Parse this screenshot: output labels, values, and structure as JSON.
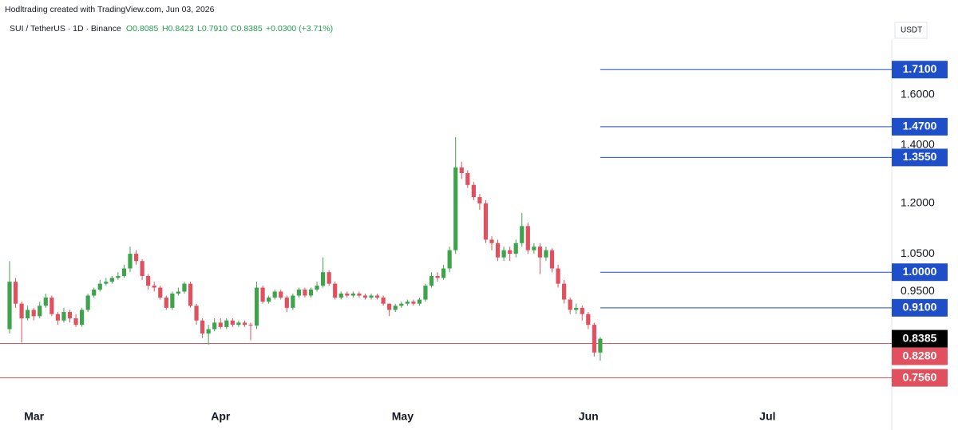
{
  "chart_data": {
    "type": "candlestick",
    "source": "Hodltrading created with TradingView.com, Jun 03, 2026",
    "title": "SUI / TetherUS · 1D · Binance",
    "status_line": [
      "O0.8085",
      "H0.8423",
      "L0.7910",
      "C0.8385",
      "+0.0300 (+3.71%)"
    ],
    "currency": "USDT",
    "log_scale": true,
    "ylim": [
      0.715,
      1.85
    ],
    "yticks": [
      {
        "value": 0.95,
        "label": "0.9500"
      },
      {
        "value": 1.05,
        "label": "1.0500"
      },
      {
        "value": 1.2,
        "label": "1.2000"
      },
      {
        "value": 1.4,
        "label": "1.4000"
      },
      {
        "value": 1.6,
        "label": "1.6000"
      }
    ],
    "up_color": "#3fa34d",
    "down_color": "#e0505e",
    "last_price_color": "#000000",
    "categories": [
      null,
      null,
      null,
      null,
      "Mar",
      null,
      null,
      null,
      null,
      null,
      null,
      null,
      null,
      null,
      null,
      null,
      null,
      null,
      null,
      null,
      null,
      null,
      null,
      null,
      null,
      null,
      null,
      null,
      null,
      null,
      null,
      null,
      null,
      null,
      null,
      "Apr",
      null,
      null,
      null,
      null,
      null,
      null,
      null,
      null,
      null,
      null,
      null,
      null,
      null,
      null,
      null,
      null,
      null,
      null,
      null,
      null,
      null,
      null,
      null,
      null,
      null,
      null,
      null,
      null,
      null,
      "May",
      null,
      null,
      null,
      null,
      null,
      null,
      null,
      null,
      null,
      null,
      null,
      null,
      null,
      null,
      null,
      null,
      null,
      null,
      null,
      null,
      null,
      null,
      null,
      null,
      null,
      null,
      null,
      null,
      null,
      null,
      "Jun",
      null,
      null,
      null,
      null,
      null,
      null,
      null,
      null,
      null,
      null,
      null,
      null,
      null,
      null,
      null,
      null,
      null,
      null,
      null,
      null,
      null,
      null,
      null,
      null,
      null,
      null,
      null,
      null,
      null,
      "Jul"
    ],
    "open": [
      0.86,
      0.975,
      0.92,
      0.885,
      0.905,
      0.89,
      0.915,
      0.935,
      0.895,
      0.88,
      0.9,
      0.885,
      0.87,
      0.905,
      0.94,
      0.955,
      0.97,
      0.975,
      0.985,
      0.99,
      1.01,
      1.05,
      1.03,
      0.99,
      0.965,
      0.96,
      0.935,
      0.91,
      0.945,
      0.95,
      0.97,
      0.915,
      0.88,
      0.85,
      0.86,
      0.875,
      0.865,
      0.88,
      0.87,
      0.875,
      0.87,
      0.868,
      0.96,
      0.925,
      0.935,
      0.95,
      0.935,
      0.91,
      0.94,
      0.955,
      0.94,
      0.955,
      0.965,
      1.0,
      0.97,
      0.935,
      0.945,
      0.94,
      0.945,
      0.94,
      0.935,
      0.94,
      0.935,
      0.92,
      0.905,
      0.915,
      0.92,
      0.925,
      0.92,
      0.93,
      0.965,
      0.99,
      0.985,
      1.01,
      1.06,
      1.32,
      1.3,
      1.26,
      1.22,
      1.2,
      1.09,
      1.08,
      1.04,
      1.06,
      1.05,
      1.08,
      1.13,
      1.06,
      1.07,
      1.04,
      1.06,
      1.01,
      0.97,
      0.93,
      0.905,
      0.91,
      0.895,
      0.87,
      0.8085,
      null,
      null,
      null,
      null,
      null,
      null,
      null,
      null,
      null,
      null,
      null,
      null,
      null,
      null,
      null,
      null,
      null,
      null,
      null,
      null,
      null,
      null,
      null,
      null,
      null,
      null,
      null,
      null
    ],
    "high": [
      1.03,
      0.985,
      0.925,
      0.915,
      0.91,
      0.925,
      0.945,
      0.94,
      0.9,
      0.91,
      0.905,
      0.895,
      0.91,
      0.945,
      0.96,
      0.98,
      0.985,
      0.99,
      1.0,
      1.02,
      1.07,
      1.06,
      1.035,
      0.995,
      0.975,
      0.965,
      0.94,
      0.95,
      0.96,
      0.975,
      0.975,
      0.92,
      0.885,
      0.87,
      0.885,
      0.885,
      0.885,
      0.885,
      0.88,
      0.88,
      0.875,
      0.975,
      0.965,
      0.94,
      0.955,
      0.955,
      0.94,
      0.945,
      0.96,
      0.96,
      0.96,
      0.975,
      1.04,
      1.005,
      0.975,
      0.95,
      0.95,
      0.95,
      0.95,
      0.945,
      0.945,
      0.945,
      0.94,
      0.92,
      0.92,
      0.925,
      0.93,
      0.93,
      0.935,
      0.97,
      1.0,
      1.0,
      1.02,
      1.07,
      1.43,
      1.34,
      1.31,
      1.27,
      1.23,
      1.21,
      1.1,
      1.09,
      1.07,
      1.07,
      1.09,
      1.17,
      1.14,
      1.08,
      1.08,
      1.07,
      1.065,
      1.02,
      0.98,
      0.935,
      0.92,
      0.915,
      0.9,
      0.875,
      0.8423,
      null,
      null,
      null,
      null,
      null,
      null,
      null,
      null,
      null,
      null,
      null,
      null,
      null,
      null,
      null,
      null,
      null,
      null,
      null,
      null,
      null,
      null,
      null,
      null,
      null,
      null,
      null,
      null
    ],
    "low": [
      0.85,
      0.91,
      0.83,
      0.88,
      0.88,
      0.885,
      0.91,
      0.89,
      0.87,
      0.875,
      0.875,
      0.865,
      0.865,
      0.9,
      0.935,
      0.95,
      0.965,
      0.97,
      0.98,
      0.985,
      1.0,
      1.02,
      0.98,
      0.955,
      0.95,
      0.93,
      0.905,
      0.905,
      0.94,
      0.945,
      0.91,
      0.87,
      0.84,
      0.825,
      0.855,
      0.86,
      0.86,
      0.865,
      0.865,
      0.865,
      0.835,
      0.86,
      0.92,
      0.92,
      0.93,
      0.93,
      0.9,
      0.905,
      0.935,
      0.935,
      0.935,
      0.95,
      0.96,
      0.965,
      0.93,
      0.93,
      0.935,
      0.935,
      0.935,
      0.93,
      0.93,
      0.93,
      0.915,
      0.89,
      0.9,
      0.91,
      0.915,
      0.915,
      0.915,
      0.925,
      0.96,
      0.975,
      0.98,
      1.0,
      1.05,
      1.28,
      1.25,
      1.21,
      1.18,
      1.08,
      1.06,
      1.03,
      1.03,
      1.03,
      1.04,
      1.07,
      1.05,
      1.05,
      0.995,
      1.03,
      1.0,
      0.96,
      0.92,
      0.895,
      0.895,
      0.88,
      0.86,
      0.8,
      0.791,
      null,
      null,
      null,
      null,
      null,
      null,
      null,
      null,
      null,
      null,
      null,
      null,
      null,
      null,
      null,
      null,
      null,
      null,
      null,
      null,
      null,
      null,
      null,
      null,
      null,
      null,
      null,
      null
    ],
    "close": [
      0.975,
      0.92,
      0.885,
      0.905,
      0.89,
      0.915,
      0.935,
      0.895,
      0.88,
      0.9,
      0.885,
      0.87,
      0.905,
      0.94,
      0.955,
      0.97,
      0.975,
      0.985,
      0.99,
      1.01,
      1.05,
      1.03,
      0.99,
      0.965,
      0.96,
      0.935,
      0.91,
      0.945,
      0.95,
      0.97,
      0.915,
      0.88,
      0.85,
      0.86,
      0.875,
      0.865,
      0.88,
      0.87,
      0.875,
      0.87,
      0.868,
      0.96,
      0.925,
      0.935,
      0.95,
      0.935,
      0.91,
      0.94,
      0.955,
      0.94,
      0.955,
      0.965,
      1.0,
      0.97,
      0.935,
      0.945,
      0.94,
      0.945,
      0.94,
      0.935,
      0.94,
      0.935,
      0.92,
      0.905,
      0.915,
      0.92,
      0.925,
      0.92,
      0.93,
      0.965,
      0.99,
      0.985,
      1.01,
      1.06,
      1.32,
      1.3,
      1.26,
      1.22,
      1.2,
      1.09,
      1.08,
      1.04,
      1.06,
      1.05,
      1.08,
      1.13,
      1.06,
      1.07,
      1.04,
      1.06,
      1.01,
      0.97,
      0.93,
      0.905,
      0.91,
      0.895,
      0.87,
      0.8085,
      0.8385,
      null,
      null,
      null,
      null,
      null,
      null,
      null,
      null,
      null,
      null,
      null,
      null,
      null,
      null,
      null,
      null,
      null,
      null,
      null,
      null,
      null,
      null,
      null,
      null,
      null,
      null,
      null,
      null
    ],
    "level_lines": {
      "color": "#1f4fc8",
      "values": [
        1.71,
        1.47,
        1.355,
        1.0,
        0.91
      ],
      "labels": [
        "1.7100",
        "1.4700",
        "1.3550",
        "1.0000",
        "0.9100"
      ]
    },
    "support_lines": {
      "color": "#e0505e",
      "values": [
        0.828,
        0.756
      ],
      "labels": [
        "0.8280",
        "0.7560"
      ]
    }
  }
}
